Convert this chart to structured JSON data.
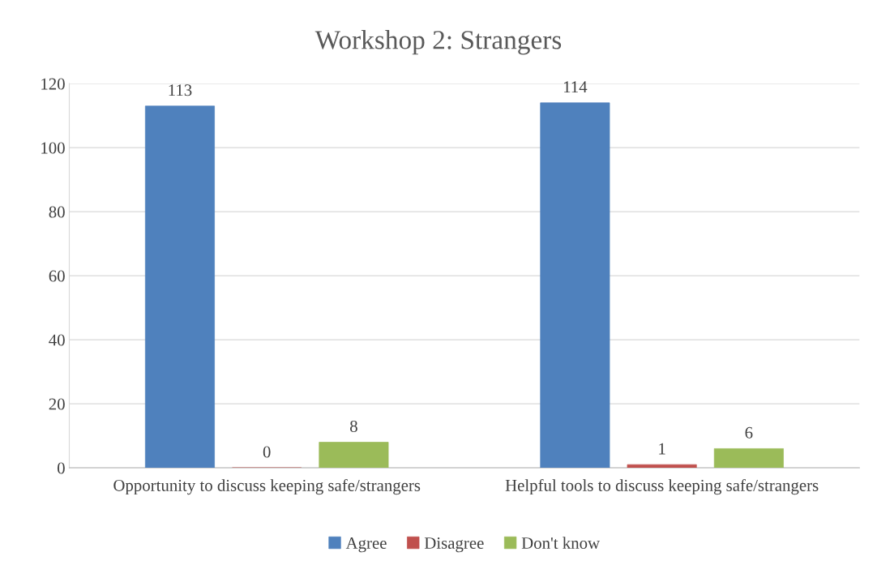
{
  "chart_data": {
    "type": "bar",
    "title": "Workshop 2: Strangers",
    "categories": [
      "Opportunity to discuss keeping safe/strangers",
      "Helpful tools to discuss keeping safe/strangers"
    ],
    "series": [
      {
        "name": "Agree",
        "color": "#4f81bd",
        "values": [
          113,
          114
        ]
      },
      {
        "name": "Disagree",
        "color": "#c0504d",
        "values": [
          0,
          1
        ]
      },
      {
        "name": "Don't know",
        "color": "#9bbb59",
        "values": [
          8,
          6
        ]
      }
    ],
    "ylim": [
      0,
      120
    ],
    "yticks": [
      0,
      20,
      40,
      60,
      80,
      100,
      120
    ],
    "grid": "y",
    "legend": "bottom",
    "data_labels": true
  }
}
